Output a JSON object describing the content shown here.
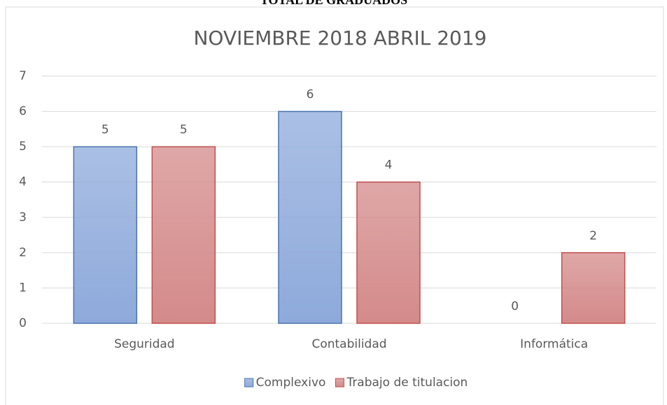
{
  "heading": "TOTAL DE GRADUADOS",
  "chart_data": {
    "type": "bar",
    "title": "NOVIEMBRE 2018 ABRIL 2019",
    "categories": [
      "Seguridad",
      "Contabilidad",
      "Informática"
    ],
    "series": [
      {
        "name": "Complexivo",
        "color": "#8eaadb",
        "stroke": "#4a74b0",
        "values": [
          5,
          6,
          0
        ]
      },
      {
        "name": "Trabajo de titulacion",
        "color": "#d48a8a",
        "stroke": "#c0504d",
        "values": [
          5,
          4,
          2
        ]
      }
    ],
    "ylim": [
      0,
      7
    ],
    "yticks": [
      0,
      1,
      2,
      3,
      4,
      5,
      6,
      7
    ],
    "grid": true,
    "legend": "bottom"
  }
}
